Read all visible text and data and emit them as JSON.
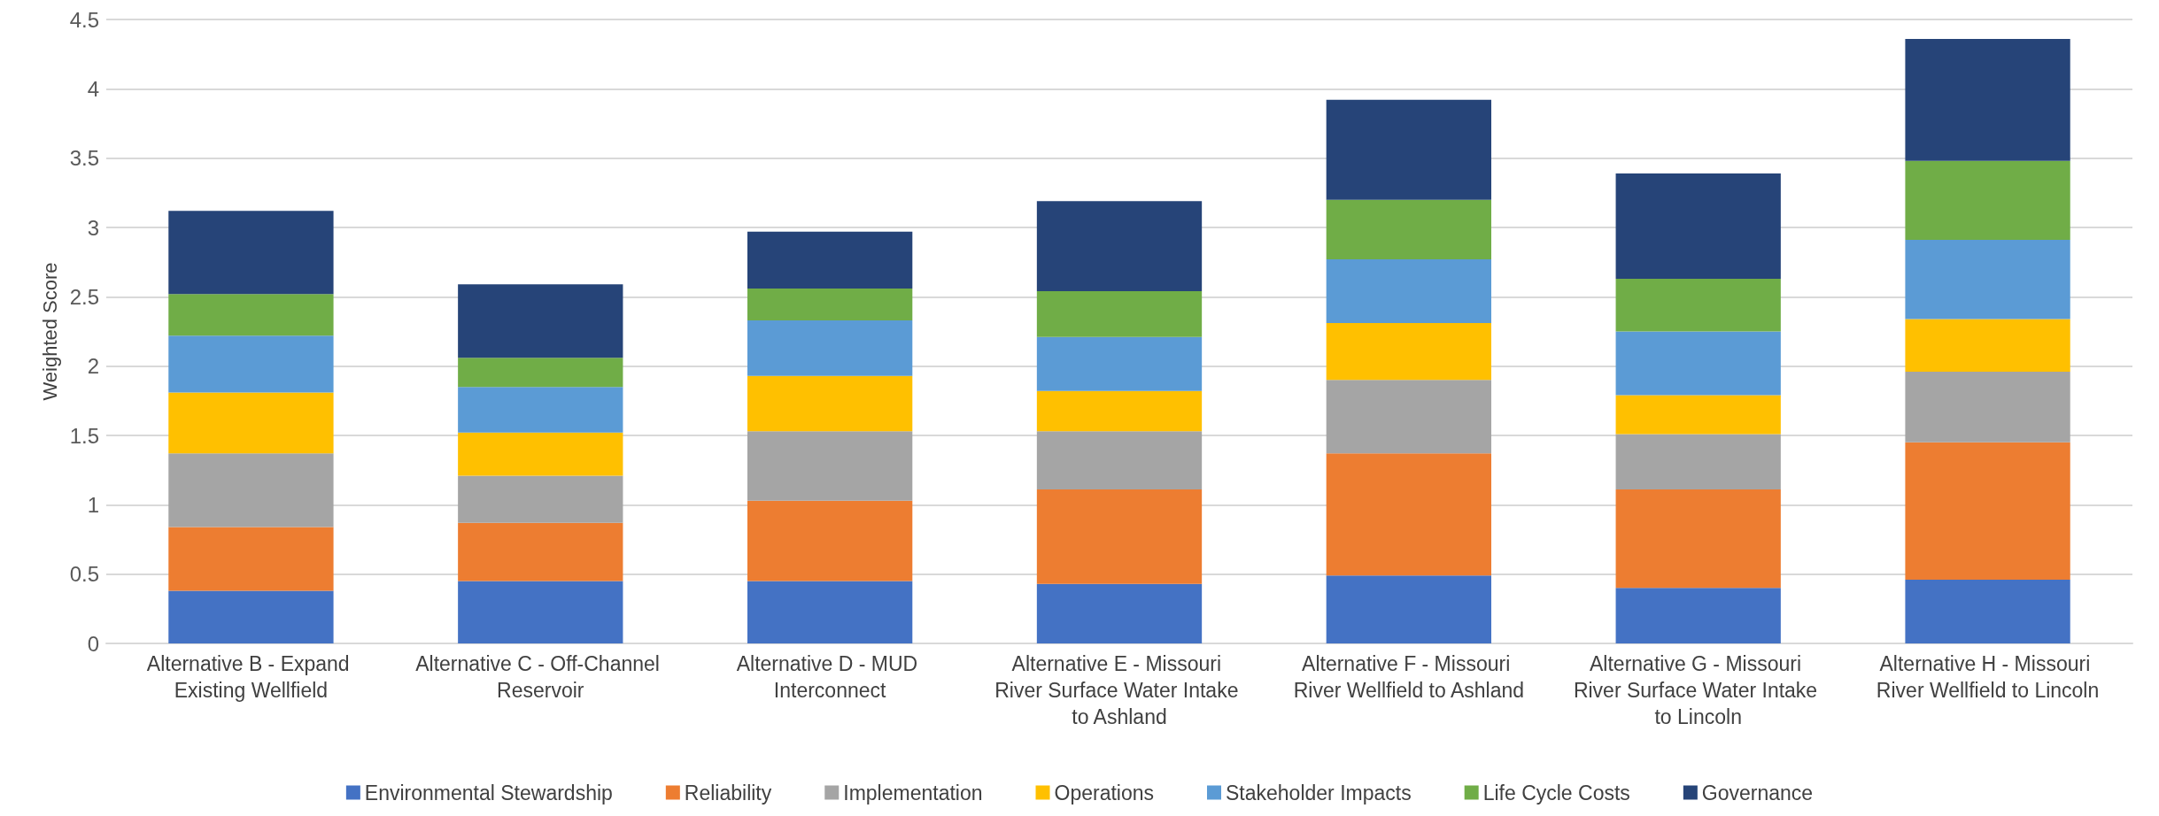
{
  "chart_data": {
    "type": "bar",
    "stacked": true,
    "ylabel": "Weighted Score",
    "categories": [
      "Alternative B - Expand Existing Wellfield",
      "Alternative C - Off-Channel Reservoir",
      "Alternative D - MUD Interconnect",
      "Alternative E - Missouri River Surface Water Intake to Ashland",
      "Alternative F - Missouri River Wellfield to Ashland",
      "Alternative G - Missouri River Surface Water Intake to Lincoln",
      "Alternative H - Missouri River Wellfield to Lincoln"
    ],
    "series": [
      {
        "name": "Environmental Stewardship",
        "color": "#4472c4",
        "values": [
          0.38,
          0.45,
          0.45,
          0.43,
          0.49,
          0.4,
          0.46
        ]
      },
      {
        "name": "Reliability",
        "color": "#ed7d31",
        "values": [
          0.46,
          0.42,
          0.58,
          0.68,
          0.88,
          0.71,
          0.99
        ]
      },
      {
        "name": "Implementation",
        "color": "#a5a5a5",
        "values": [
          0.53,
          0.34,
          0.5,
          0.42,
          0.53,
          0.4,
          0.51
        ]
      },
      {
        "name": "Operations",
        "color": "#ffc000",
        "values": [
          0.44,
          0.31,
          0.4,
          0.29,
          0.41,
          0.28,
          0.38
        ]
      },
      {
        "name": "Stakeholder Impacts",
        "color": "#5b9bd5",
        "values": [
          0.41,
          0.33,
          0.4,
          0.39,
          0.46,
          0.46,
          0.57
        ]
      },
      {
        "name": "Life Cycle Costs",
        "color": "#70ad47",
        "values": [
          0.3,
          0.21,
          0.23,
          0.33,
          0.43,
          0.38,
          0.57
        ]
      },
      {
        "name": "Governance",
        "color": "#264478",
        "values": [
          0.6,
          0.53,
          0.41,
          0.65,
          0.72,
          0.76,
          0.88
        ]
      }
    ],
    "ylim": [
      0,
      4.5
    ],
    "yticks": [
      0,
      0.5,
      1,
      1.5,
      2,
      2.5,
      3,
      3.5,
      4,
      4.5
    ],
    "grid": "y",
    "legend": "bottom"
  }
}
